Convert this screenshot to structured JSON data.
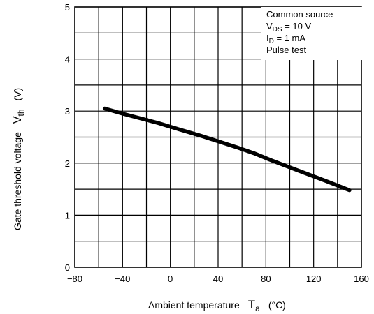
{
  "chart_data": {
    "type": "line",
    "title": "",
    "xlabel": {
      "text": "Ambient temperature",
      "symbol": "T",
      "symbol_sub": "a",
      "unit": "(°C)"
    },
    "ylabel": {
      "text": "Gate threshold voltage",
      "symbol": "V",
      "symbol_sub": "th",
      "unit": "(V)"
    },
    "xlim": [
      -80,
      160
    ],
    "ylim": [
      0,
      5
    ],
    "x_ticks": [
      -80,
      -40,
      0,
      40,
      80,
      120,
      160
    ],
    "x_tick_labels": [
      "−80",
      "−40",
      "0",
      "40",
      "80",
      "120",
      "160"
    ],
    "y_ticks": [
      0,
      1,
      2,
      3,
      4,
      5
    ],
    "y_tick_labels": [
      "0",
      "1",
      "2",
      "3",
      "4",
      "5"
    ],
    "grid": true,
    "conditions": [
      {
        "text": "Common source"
      },
      {
        "main": "V",
        "sub": "DS",
        "rest": " = 10 V"
      },
      {
        "main": "I",
        "sub": "D",
        "rest": " = 1 mA"
      },
      {
        "text": "Pulse test"
      }
    ],
    "series": [
      {
        "color": "#000000",
        "x": [
          -55,
          -40,
          -25,
          -10,
          0,
          10,
          25,
          40,
          55,
          70,
          85,
          100,
          115,
          130,
          150
        ],
        "y": [
          3.05,
          2.95,
          2.86,
          2.77,
          2.7,
          2.63,
          2.53,
          2.42,
          2.31,
          2.19,
          2.05,
          1.92,
          1.79,
          1.66,
          1.48
        ]
      }
    ]
  }
}
